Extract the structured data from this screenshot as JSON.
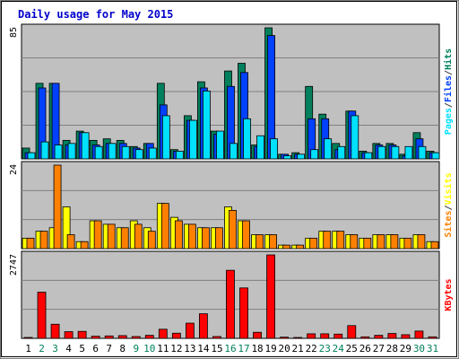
{
  "chart_data": {
    "type": "bar",
    "title": "Daily usage for May 2015",
    "categories": [
      "1",
      "2",
      "3",
      "4",
      "5",
      "6",
      "7",
      "8",
      "9",
      "10",
      "11",
      "12",
      "13",
      "14",
      "15",
      "16",
      "17",
      "18",
      "19",
      "20",
      "21",
      "22",
      "23",
      "24",
      "25",
      "26",
      "27",
      "28",
      "29",
      "30",
      "31"
    ],
    "weekend_days": [
      "2",
      "3",
      "9",
      "10",
      "16",
      "17",
      "23",
      "24",
      "30",
      "31"
    ],
    "colors": {
      "title": "#0000cc",
      "background": "#c0c0c0",
      "grid": "#808080",
      "hits": "#00805c",
      "files": "#0040ff",
      "pages": "#00e0ff",
      "visits": "#ffff00",
      "sites": "#ff8000",
      "kbytes": "#ff0000",
      "weekday_label": "#000000",
      "weekend_label": "#00805c"
    },
    "panels": [
      {
        "max_label": "85",
        "legend": [
          "Pages",
          "Files",
          "Hits"
        ],
        "legend_colors": [
          "#00e0ff",
          "#0040ff",
          "#00805c"
        ],
        "series": [
          {
            "name": "Hits",
            "color": "#00805c",
            "values": [
              7,
              49,
              49,
              12,
              18,
              12,
              13,
              12,
              8,
              10,
              49,
              6,
              28,
              50,
              18,
              57,
              62,
              9,
              85,
              3,
              4,
              47,
              29,
              10,
              31,
              5,
              10,
              10,
              3,
              17,
              5
            ]
          },
          {
            "name": "Files",
            "color": "#0040ff",
            "values": [
              4,
              46,
              49,
              9,
              17,
              9,
              10,
              10,
              7,
              10,
              35,
              5,
              25,
              46,
              16,
              47,
              56,
              8,
              80,
              3,
              3,
              26,
              26,
              6,
              31,
              4,
              9,
              9,
              2,
              13,
              4
            ]
          },
          {
            "name": "Pages",
            "color": "#00e0ff",
            "values": [
              4,
              11,
              9,
              10,
              17,
              8,
              10,
              8,
              6,
              7,
              28,
              5,
              25,
              44,
              18,
              10,
              26,
              15,
              13,
              2,
              3,
              6,
              13,
              8,
              28,
              4,
              8,
              8,
              8,
              8,
              4
            ]
          }
        ],
        "ymax": 85
      },
      {
        "max_label": "24",
        "legend": [
          "Sites",
          "/",
          "Visits"
        ],
        "legend_colors": [
          "#ff8000",
          "#808080",
          "#ffff00"
        ],
        "series": [
          {
            "name": "Visits",
            "color": "#ffff00",
            "values": [
              3,
              5,
              6,
              12,
              2,
              8,
              7,
              6,
              8,
              6,
              13,
              9,
              7,
              6,
              6,
              12,
              8,
              4,
              4,
              1,
              1,
              3,
              5,
              5,
              4,
              3,
              4,
              4,
              3,
              4,
              2
            ]
          },
          {
            "name": "Sites",
            "color": "#ff8000",
            "values": [
              3,
              5,
              24,
              4,
              2,
              8,
              7,
              6,
              7,
              5,
              13,
              8,
              7,
              6,
              6,
              11,
              8,
              4,
              4,
              1,
              1,
              3,
              5,
              5,
              4,
              3,
              4,
              4,
              3,
              4,
              2
            ]
          }
        ],
        "ymax": 24
      },
      {
        "max_label": "2747",
        "legend": [
          "KBytes"
        ],
        "legend_colors": [
          "#ff0000"
        ],
        "series": [
          {
            "name": "KBytes",
            "color": "#ff0000",
            "values": [
              20,
              1520,
              465,
              220,
              230,
              70,
              80,
              90,
              60,
              100,
              300,
              170,
              500,
              810,
              60,
              2240,
              1660,
              200,
              2747,
              40,
              20,
              150,
              150,
              140,
              420,
              50,
              100,
              160,
              120,
              240,
              50
            ]
          }
        ],
        "ymax": 2747
      }
    ],
    "legend_display": {
      "panel1": "Pages/Files/Hits",
      "panel2": "Sites/Visits",
      "panel3": "KBytes"
    }
  }
}
